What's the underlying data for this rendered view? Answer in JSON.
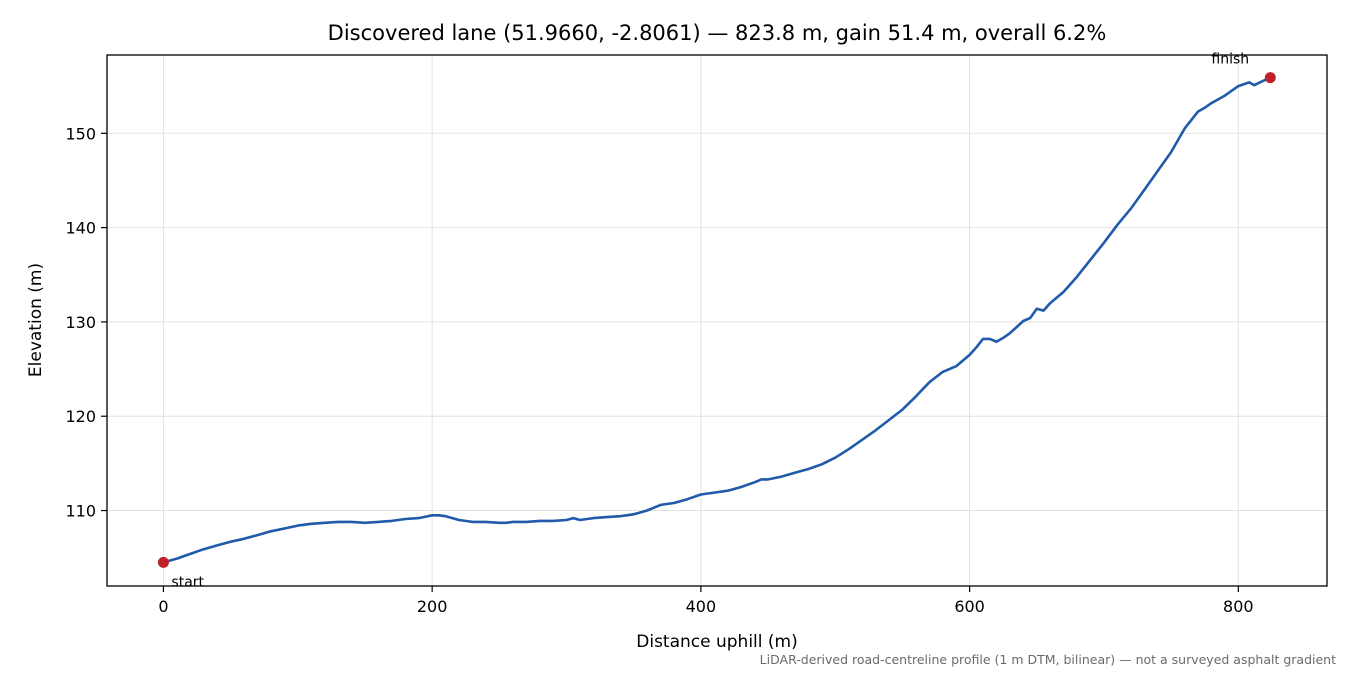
{
  "chart_data": {
    "type": "line",
    "title": "Discovered lane (51.9660, -2.8061) — 823.8 m, gain 51.4 m, overall 6.2%",
    "xlabel": "Distance uphill (m)",
    "ylabel": "Elevation (m)",
    "footnote": "LiDAR-derived road-centreline profile (1 m DTM, bilinear) — not a surveyed asphalt gradient",
    "xlim": [
      -42,
      866
    ],
    "ylim": [
      102.0,
      158.3
    ],
    "xticks": [
      0,
      200,
      400,
      600,
      800
    ],
    "yticks": [
      110,
      120,
      130,
      140,
      150
    ],
    "grid": true,
    "colors": {
      "line": "#1f5aab",
      "marker": "#c0202a",
      "grid": "#e2e2e2"
    },
    "series": [
      {
        "x": [
          0,
          10,
          20,
          30,
          40,
          50,
          60,
          70,
          80,
          90,
          100,
          110,
          120,
          130,
          140,
          150,
          160,
          170,
          180,
          190,
          200,
          205,
          210,
          220,
          230,
          240,
          250,
          255,
          260,
          270,
          280,
          290,
          300,
          305,
          310,
          320,
          330,
          340,
          350,
          360,
          365,
          370,
          380,
          390,
          400,
          410,
          420,
          430,
          440,
          445,
          450,
          460,
          470,
          480,
          490,
          500,
          510,
          520,
          530,
          540,
          550,
          560,
          570,
          580,
          590,
          600,
          605,
          610,
          615,
          620,
          625,
          630,
          640,
          645,
          650,
          655,
          660,
          670,
          680,
          690,
          700,
          710,
          720,
          730,
          740,
          750,
          760,
          770,
          775,
          780,
          790,
          800,
          808,
          812,
          816,
          823.8
        ],
        "y": [
          104.5,
          104.9,
          105.4,
          105.9,
          106.3,
          106.7,
          107.0,
          107.4,
          107.8,
          108.1,
          108.4,
          108.6,
          108.7,
          108.8,
          108.8,
          108.7,
          108.8,
          108.9,
          109.1,
          109.2,
          109.5,
          109.5,
          109.4,
          109.0,
          108.8,
          108.8,
          108.7,
          108.7,
          108.8,
          108.8,
          108.9,
          108.9,
          109.0,
          109.2,
          109.0,
          109.2,
          109.3,
          109.4,
          109.6,
          110.0,
          110.3,
          110.6,
          110.8,
          111.2,
          111.7,
          111.9,
          112.1,
          112.5,
          113.0,
          113.3,
          113.3,
          113.6,
          114.0,
          114.4,
          114.9,
          115.6,
          116.5,
          117.5,
          118.5,
          119.6,
          120.7,
          122.1,
          123.6,
          124.7,
          125.3,
          126.5,
          127.3,
          128.2,
          128.2,
          127.9,
          128.3,
          128.8,
          130.1,
          130.4,
          131.4,
          131.2,
          132.0,
          133.2,
          134.8,
          136.6,
          138.4,
          140.3,
          142.0,
          144.0,
          146.0,
          148.0,
          150.5,
          152.3,
          152.7,
          153.2,
          154.0,
          155.0,
          155.4,
          155.1,
          155.4,
          155.9
        ]
      }
    ],
    "markers": [
      {
        "x": 0,
        "y": 104.5,
        "label": "start"
      },
      {
        "x": 823.8,
        "y": 155.9,
        "label": "finish"
      }
    ]
  }
}
